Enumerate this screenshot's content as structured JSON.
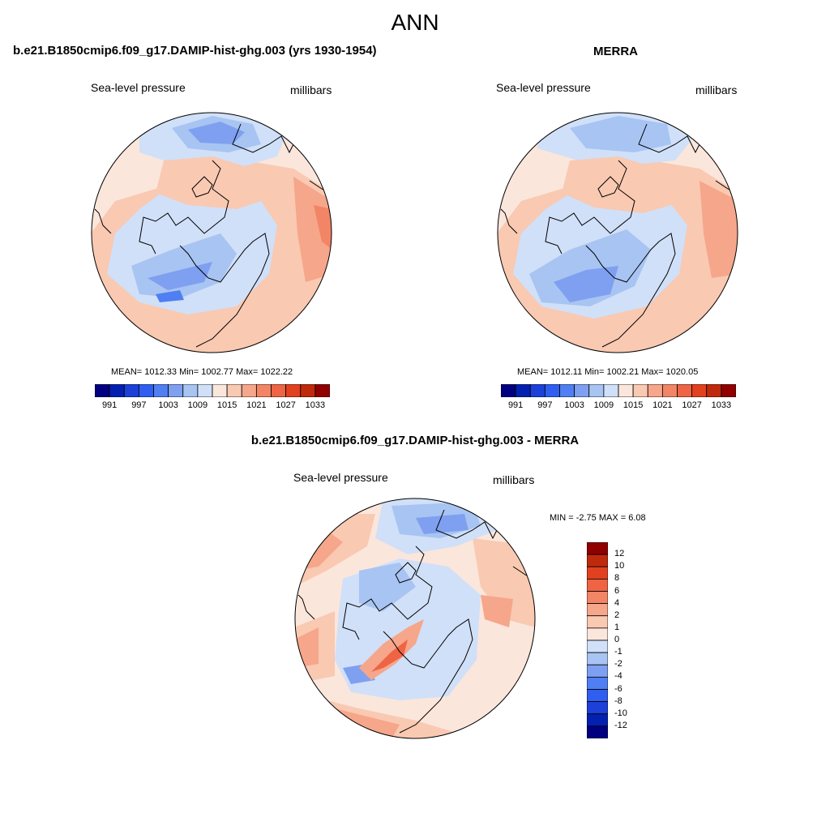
{
  "page_title": "ANN",
  "panels": [
    {
      "title": "b.e21.B1850cmip6.f09_g17.DAMIP-hist-ghg.003 (yrs 1930-1954)",
      "left_label": "Sea-level pressure",
      "right_label": "millibars",
      "stats": "MEAN= 1012.33  Min= 1002.77  Max= 1022.22"
    },
    {
      "title": "MERRA",
      "left_label": "Sea-level pressure",
      "right_label": "millibars",
      "stats": "MEAN= 1012.11  Min= 1002.21  Max= 1020.05"
    },
    {
      "title": "b.e21.B1850cmip6.f09_g17.DAMIP-hist-ghg.003 - MERRA",
      "left_label": "Sea-level pressure",
      "right_label": "millibars",
      "stats": "MIN =  -2.75 MAX =   6.08"
    }
  ],
  "colorbar_abs": {
    "colors": [
      "#000080",
      "#0320b0",
      "#1c40d8",
      "#2f5ff0",
      "#4f7ff2",
      "#7fa0f0",
      "#a8c4f2",
      "#d0e0f8",
      "#fbe6dc",
      "#f9c9b2",
      "#f6a68a",
      "#f28566",
      "#ee6444",
      "#e2411f",
      "#c02a0c",
      "#900000"
    ],
    "ticks": [
      "991",
      "997",
      "1003",
      "1009",
      "1015",
      "1021",
      "1027",
      "1033"
    ]
  },
  "colorbar_diff": {
    "colors": [
      "#000080",
      "#0320b0",
      "#1c40d8",
      "#2f5ff0",
      "#4f7ff2",
      "#7fa0f0",
      "#a8c4f2",
      "#d0e0f8",
      "#fbe6dc",
      "#f9c9b2",
      "#f6a68a",
      "#f28566",
      "#ee6444",
      "#e2411f",
      "#c02a0c",
      "#900000"
    ],
    "ticks": [
      "12",
      "10",
      "8",
      "6",
      "4",
      "2",
      "1",
      "0",
      "-1",
      "-2",
      "-4",
      "-6",
      "-8",
      "-10",
      "-12"
    ]
  }
}
